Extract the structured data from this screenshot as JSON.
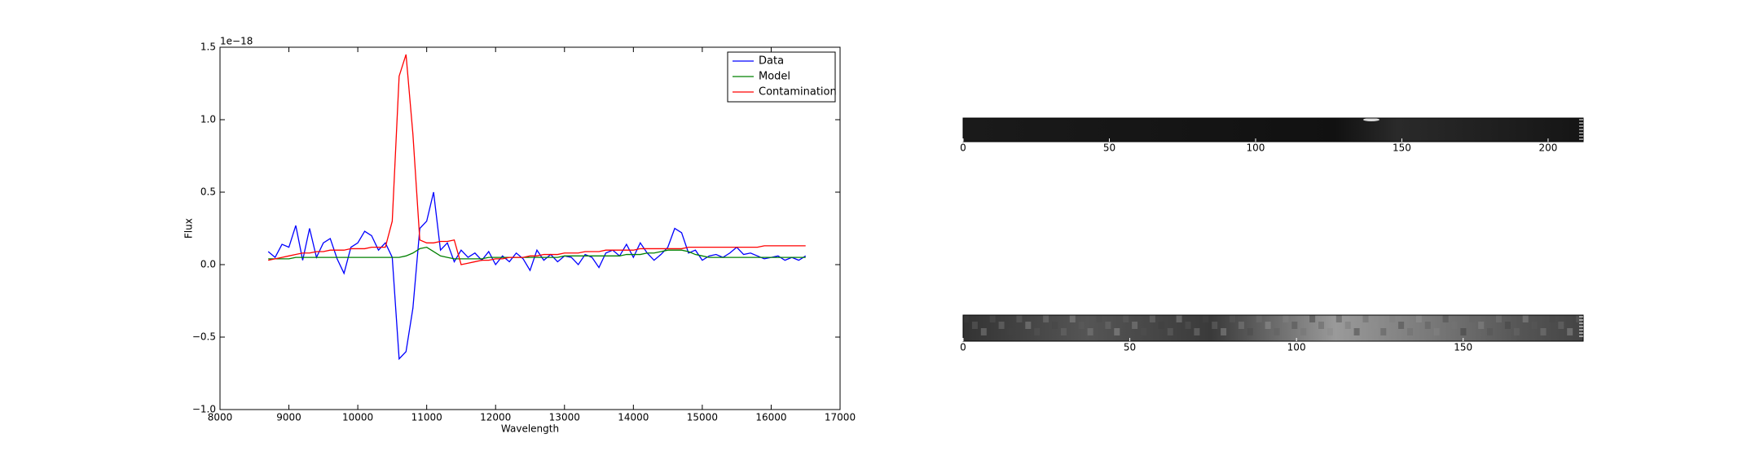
{
  "chart_data": [
    {
      "type": "line",
      "offset_text": "1e−18",
      "xlabel": "Wavelength",
      "ylabel": "Flux",
      "xlim": [
        8000,
        17000
      ],
      "xticks": [
        8000,
        9000,
        10000,
        11000,
        12000,
        13000,
        14000,
        15000,
        16000,
        17000
      ],
      "ylim": [
        -1.0,
        1.5
      ],
      "yticks": [
        {
          "value": -1.0,
          "label": "−1.0"
        },
        {
          "value": -0.5,
          "label": "−0.5"
        },
        {
          "value": 0,
          "label": "0.0"
        },
        {
          "value": 0.5,
          "label": "0.5"
        },
        {
          "value": 1.0,
          "label": "1.0"
        },
        {
          "value": 1.5,
          "label": "1.5"
        }
      ],
      "legend": "upper right",
      "x": [
        8700,
        8800,
        8900,
        9000,
        9100,
        9200,
        9300,
        9400,
        9500,
        9600,
        9700,
        9800,
        9900,
        10000,
        10100,
        10200,
        10300,
        10400,
        10500,
        10600,
        10700,
        10800,
        10900,
        11000,
        11100,
        11200,
        11300,
        11400,
        11500,
        11600,
        11700,
        11800,
        11900,
        12000,
        12100,
        12200,
        12300,
        12400,
        12500,
        12600,
        12700,
        12800,
        12900,
        13000,
        13100,
        13200,
        13300,
        13400,
        13500,
        13600,
        13700,
        13800,
        13900,
        14000,
        14100,
        14200,
        14300,
        14400,
        14500,
        14600,
        14700,
        14800,
        14900,
        15000,
        15100,
        15200,
        15300,
        15400,
        15500,
        15600,
        15700,
        15800,
        15900,
        16000,
        16100,
        16200,
        16300,
        16400,
        16500
      ],
      "series": [
        {
          "name": "Data",
          "color": "#0000ff",
          "values": [
            0.09,
            0.05,
            0.14,
            0.12,
            0.27,
            0.03,
            0.25,
            0.05,
            0.15,
            0.18,
            0.04,
            -0.06,
            0.12,
            0.15,
            0.23,
            0.2,
            0.1,
            0.15,
            0.05,
            -0.65,
            -0.6,
            -0.3,
            0.25,
            0.3,
            0.5,
            0.1,
            0.15,
            0.02,
            0.1,
            0.05,
            0.08,
            0.03,
            0.09,
            0.0,
            0.06,
            0.02,
            0.08,
            0.04,
            -0.04,
            0.1,
            0.03,
            0.07,
            0.02,
            0.06,
            0.05,
            0.0,
            0.07,
            0.05,
            -0.02,
            0.08,
            0.1,
            0.06,
            0.14,
            0.05,
            0.15,
            0.08,
            0.03,
            0.07,
            0.12,
            0.25,
            0.22,
            0.08,
            0.1,
            0.03,
            0.06,
            0.07,
            0.05,
            0.08,
            0.12,
            0.07,
            0.08,
            0.06,
            0.04,
            0.05,
            0.06,
            0.03,
            0.05,
            0.03,
            0.06
          ]
        },
        {
          "name": "Model",
          "color": "#008000",
          "values": [
            0.04,
            0.04,
            0.04,
            0.04,
            0.05,
            0.05,
            0.05,
            0.05,
            0.05,
            0.05,
            0.05,
            0.05,
            0.05,
            0.05,
            0.05,
            0.05,
            0.05,
            0.05,
            0.05,
            0.05,
            0.06,
            0.08,
            0.11,
            0.12,
            0.09,
            0.06,
            0.05,
            0.04,
            0.04,
            0.04,
            0.04,
            0.04,
            0.05,
            0.05,
            0.05,
            0.05,
            0.05,
            0.05,
            0.05,
            0.05,
            0.05,
            0.05,
            0.05,
            0.06,
            0.06,
            0.06,
            0.06,
            0.06,
            0.06,
            0.06,
            0.06,
            0.06,
            0.07,
            0.07,
            0.07,
            0.08,
            0.08,
            0.09,
            0.1,
            0.1,
            0.1,
            0.09,
            0.07,
            0.06,
            0.05,
            0.05,
            0.05,
            0.05,
            0.05,
            0.05,
            0.05,
            0.05,
            0.05,
            0.05,
            0.05,
            0.05,
            0.05,
            0.05,
            0.05
          ]
        },
        {
          "name": "Contamination",
          "color": "#ff0000",
          "values": [
            0.03,
            0.04,
            0.05,
            0.06,
            0.07,
            0.08,
            0.08,
            0.09,
            0.09,
            0.1,
            0.1,
            0.1,
            0.11,
            0.11,
            0.11,
            0.12,
            0.12,
            0.12,
            0.3,
            1.3,
            1.45,
            0.9,
            0.17,
            0.15,
            0.15,
            0.16,
            0.16,
            0.17,
            0.0,
            0.01,
            0.02,
            0.03,
            0.03,
            0.04,
            0.04,
            0.05,
            0.05,
            0.05,
            0.06,
            0.06,
            0.07,
            0.07,
            0.07,
            0.08,
            0.08,
            0.08,
            0.09,
            0.09,
            0.09,
            0.1,
            0.1,
            0.1,
            0.1,
            0.1,
            0.11,
            0.11,
            0.11,
            0.11,
            0.11,
            0.11,
            0.11,
            0.12,
            0.12,
            0.12,
            0.12,
            0.12,
            0.12,
            0.12,
            0.12,
            0.12,
            0.12,
            0.12,
            0.13,
            0.13,
            0.13,
            0.13,
            0.13,
            0.13,
            0.13
          ]
        }
      ]
    },
    {
      "type": "image",
      "colormap": "gray",
      "xlim": [
        0,
        212
      ],
      "xticks": [
        0,
        50,
        100,
        150,
        200
      ]
    },
    {
      "type": "image",
      "colormap": "gray",
      "xlim": [
        0,
        186
      ],
      "xticks": [
        0,
        50,
        100,
        150
      ]
    }
  ]
}
